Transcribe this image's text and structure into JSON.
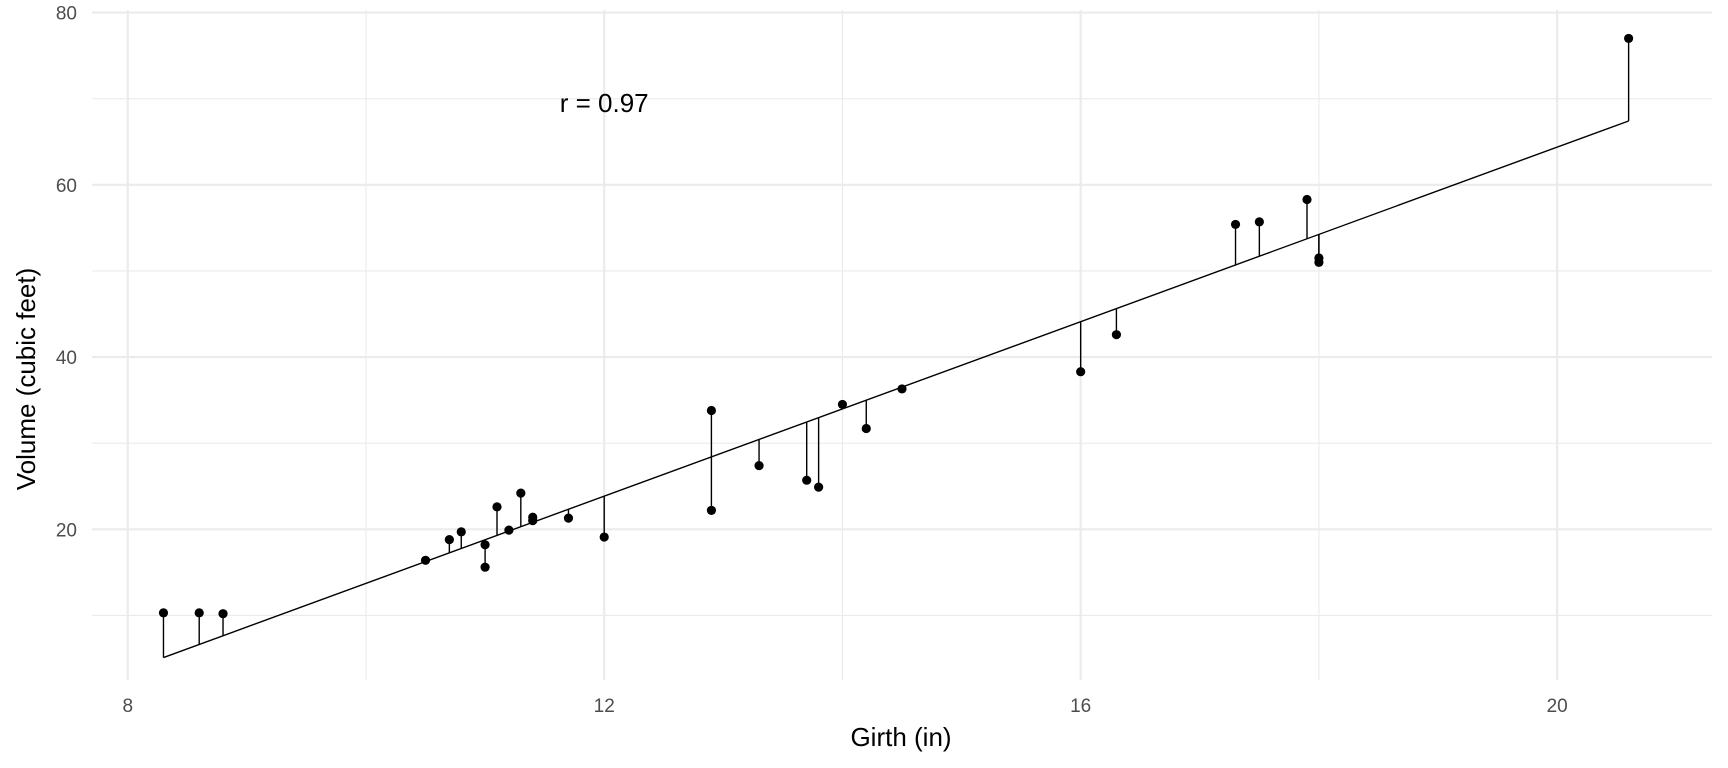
{
  "chart_data": {
    "type": "scatter",
    "xlabel": "Girth (in)",
    "ylabel": "Volume (cubic feet)",
    "annotation": {
      "text": "r = 0.97",
      "x": 12.0,
      "y": 69.5
    },
    "xlim": [
      7.7,
      21.3
    ],
    "ylim": [
      2.5,
      80.3
    ],
    "x_ticks": [
      8,
      12,
      16,
      20
    ],
    "x_tick_labels": [
      "8",
      "12",
      "16",
      "20"
    ],
    "y_ticks": [
      20,
      40,
      60,
      80
    ],
    "y_tick_labels": [
      "20",
      "40",
      "60",
      "80"
    ],
    "grid": true,
    "fit": {
      "intercept": -36.9435,
      "slope": 5.0659,
      "color": "#000000"
    },
    "residuals_shown": true,
    "point_color": "#000000",
    "points": [
      {
        "x": 8.3,
        "y": 10.3
      },
      {
        "x": 8.6,
        "y": 10.3
      },
      {
        "x": 8.8,
        "y": 10.2
      },
      {
        "x": 10.5,
        "y": 16.4
      },
      {
        "x": 10.7,
        "y": 18.8
      },
      {
        "x": 10.8,
        "y": 19.7
      },
      {
        "x": 11.0,
        "y": 15.6
      },
      {
        "x": 11.0,
        "y": 18.2
      },
      {
        "x": 11.1,
        "y": 22.6
      },
      {
        "x": 11.2,
        "y": 19.9
      },
      {
        "x": 11.3,
        "y": 24.2
      },
      {
        "x": 11.4,
        "y": 21.0
      },
      {
        "x": 11.4,
        "y": 21.4
      },
      {
        "x": 11.7,
        "y": 21.3
      },
      {
        "x": 12.0,
        "y": 19.1
      },
      {
        "x": 12.9,
        "y": 22.2
      },
      {
        "x": 12.9,
        "y": 33.8
      },
      {
        "x": 13.3,
        "y": 27.4
      },
      {
        "x": 13.7,
        "y": 25.7
      },
      {
        "x": 13.8,
        "y": 24.9
      },
      {
        "x": 14.0,
        "y": 34.5
      },
      {
        "x": 14.2,
        "y": 31.7
      },
      {
        "x": 14.5,
        "y": 36.3
      },
      {
        "x": 16.0,
        "y": 38.3
      },
      {
        "x": 16.3,
        "y": 42.6
      },
      {
        "x": 17.3,
        "y": 55.4
      },
      {
        "x": 17.5,
        "y": 55.7
      },
      {
        "x": 17.9,
        "y": 58.3
      },
      {
        "x": 18.0,
        "y": 51.5
      },
      {
        "x": 18.0,
        "y": 51.0
      },
      {
        "x": 20.6,
        "y": 77.0
      }
    ]
  }
}
